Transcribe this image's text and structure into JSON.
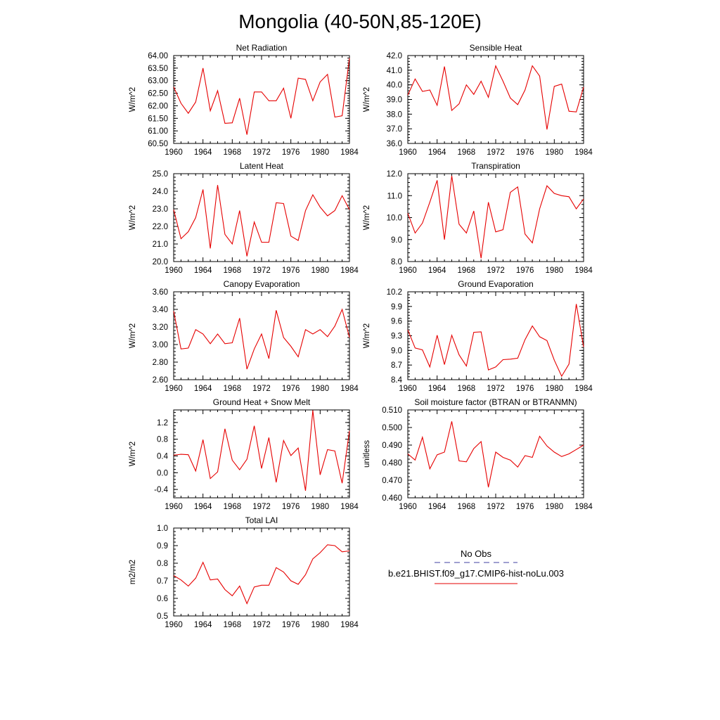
{
  "figure": {
    "title": "Mongolia (40-50N,85-120E)"
  },
  "legend": {
    "obs_label": "No Obs",
    "obs_color": "#3f3fa0",
    "model_label": "b.e21.BHIST.f09_g17.CMIP6-hist-noLu.003",
    "model_color": "#e60000"
  },
  "chart_data": [
    {
      "type": "line",
      "title": "Net Radiation",
      "ylabel": "W/m^2",
      "xlim": [
        1960,
        1984
      ],
      "ylim": [
        60.5,
        64.0
      ],
      "xticks": [
        "1960",
        "1964",
        "1968",
        "1972",
        "1976",
        "1980",
        "1984"
      ],
      "yticks": [
        "60.50",
        "61.00",
        "61.50",
        "62.00",
        "62.50",
        "63.00",
        "63.50",
        "64.00"
      ],
      "x": [
        1960,
        1961,
        1962,
        1963,
        1964,
        1965,
        1966,
        1967,
        1968,
        1969,
        1970,
        1971,
        1972,
        1973,
        1974,
        1975,
        1976,
        1977,
        1978,
        1979,
        1980,
        1981,
        1982,
        1983,
        1984
      ],
      "series": [
        {
          "values": [
            62.75,
            62.1,
            61.7,
            62.15,
            63.5,
            61.8,
            62.6,
            61.3,
            61.32,
            62.3,
            60.85,
            62.55,
            62.55,
            62.2,
            62.2,
            62.7,
            61.5,
            63.1,
            63.05,
            62.2,
            62.95,
            63.25,
            61.55,
            61.6,
            63.9
          ]
        }
      ]
    },
    {
      "type": "line",
      "title": "Sensible Heat",
      "ylabel": "W/m^2",
      "xlim": [
        1960,
        1984
      ],
      "ylim": [
        36.0,
        42.0
      ],
      "xticks": [
        "1960",
        "1964",
        "1968",
        "1972",
        "1976",
        "1980",
        "1984"
      ],
      "yticks": [
        "36.0",
        "37.0",
        "38.0",
        "39.0",
        "40.0",
        "41.0",
        "42.0"
      ],
      "x": [
        1960,
        1961,
        1962,
        1963,
        1964,
        1965,
        1966,
        1967,
        1968,
        1969,
        1970,
        1971,
        1972,
        1973,
        1974,
        1975,
        1976,
        1977,
        1978,
        1979,
        1980,
        1981,
        1982,
        1983,
        1984
      ],
      "series": [
        {
          "values": [
            39.3,
            40.4,
            39.55,
            39.65,
            38.6,
            41.25,
            38.25,
            38.7,
            40.0,
            39.35,
            40.25,
            39.15,
            41.3,
            40.25,
            39.1,
            38.65,
            39.65,
            41.3,
            40.6,
            36.95,
            39.9,
            40.05,
            38.2,
            38.15,
            39.85
          ]
        }
      ]
    },
    {
      "type": "line",
      "title": "Latent Heat",
      "ylabel": "W/m^2",
      "xlim": [
        1960,
        1984
      ],
      "ylim": [
        20.0,
        25.0
      ],
      "xticks": [
        "1960",
        "1964",
        "1968",
        "1972",
        "1976",
        "1980",
        "1984"
      ],
      "yticks": [
        "20.0",
        "21.0",
        "22.0",
        "23.0",
        "24.0",
        "25.0"
      ],
      "x": [
        1960,
        1961,
        1962,
        1963,
        1964,
        1965,
        1966,
        1967,
        1968,
        1969,
        1970,
        1971,
        1972,
        1973,
        1974,
        1975,
        1976,
        1977,
        1978,
        1979,
        1980,
        1981,
        1982,
        1983,
        1984
      ],
      "series": [
        {
          "values": [
            22.95,
            21.3,
            21.7,
            22.5,
            24.1,
            20.75,
            24.35,
            21.55,
            21.0,
            22.9,
            20.3,
            22.25,
            21.1,
            21.1,
            23.35,
            23.3,
            21.45,
            21.2,
            22.9,
            23.8,
            23.1,
            22.6,
            22.9,
            23.75,
            22.95
          ]
        }
      ]
    },
    {
      "type": "line",
      "title": "Transpiration",
      "ylabel": "W/m^2",
      "xlim": [
        1960,
        1984
      ],
      "ylim": [
        8.0,
        12.0
      ],
      "xticks": [
        "1960",
        "1964",
        "1968",
        "1972",
        "1976",
        "1980",
        "1984"
      ],
      "yticks": [
        "8.0",
        "9.0",
        "10.0",
        "11.0",
        "12.0"
      ],
      "x": [
        1960,
        1961,
        1962,
        1963,
        1964,
        1965,
        1966,
        1967,
        1968,
        1969,
        1970,
        1971,
        1972,
        1973,
        1974,
        1975,
        1976,
        1977,
        1978,
        1979,
        1980,
        1981,
        1982,
        1983,
        1984
      ],
      "series": [
        {
          "values": [
            10.2,
            9.3,
            9.75,
            10.7,
            11.7,
            9.0,
            11.9,
            9.7,
            9.3,
            10.3,
            8.15,
            10.7,
            9.35,
            9.45,
            11.15,
            11.4,
            9.25,
            8.85,
            10.4,
            11.45,
            11.1,
            11.0,
            10.95,
            10.4,
            10.85
          ]
        }
      ]
    },
    {
      "type": "line",
      "title": "Canopy Evaporation",
      "ylabel": "W/m^2",
      "xlim": [
        1960,
        1984
      ],
      "ylim": [
        2.6,
        3.6
      ],
      "xticks": [
        "1960",
        "1964",
        "1968",
        "1972",
        "1976",
        "1980",
        "1984"
      ],
      "yticks": [
        "2.60",
        "2.80",
        "3.00",
        "3.20",
        "3.40",
        "3.60"
      ],
      "x": [
        1960,
        1961,
        1962,
        1963,
        1964,
        1965,
        1966,
        1967,
        1968,
        1969,
        1970,
        1971,
        1972,
        1973,
        1974,
        1975,
        1976,
        1977,
        1978,
        1979,
        1980,
        1981,
        1982,
        1983,
        1984
      ],
      "series": [
        {
          "values": [
            3.38,
            2.95,
            2.96,
            3.17,
            3.12,
            3.01,
            3.12,
            3.01,
            3.02,
            3.3,
            2.72,
            2.95,
            3.12,
            2.84,
            3.39,
            3.08,
            2.98,
            2.86,
            3.17,
            3.12,
            3.17,
            3.09,
            3.21,
            3.4,
            3.08
          ]
        }
      ]
    },
    {
      "type": "line",
      "title": "Ground Evaporation",
      "ylabel": "W/m^2",
      "xlim": [
        1960,
        1984
      ],
      "ylim": [
        8.4,
        10.2
      ],
      "xticks": [
        "1960",
        "1964",
        "1968",
        "1972",
        "1976",
        "1980",
        "1984"
      ],
      "yticks": [
        "8.4",
        "8.7",
        "9.0",
        "9.3",
        "9.6",
        "9.9",
        "10.2"
      ],
      "x": [
        1960,
        1961,
        1962,
        1963,
        1964,
        1965,
        1966,
        1967,
        1968,
        1969,
        1970,
        1971,
        1972,
        1973,
        1974,
        1975,
        1976,
        1977,
        1978,
        1979,
        1980,
        1981,
        1982,
        1983,
        1984
      ],
      "series": [
        {
          "values": [
            9.42,
            9.05,
            9.01,
            8.66,
            9.31,
            8.71,
            9.31,
            8.91,
            8.68,
            9.37,
            9.38,
            8.6,
            8.66,
            8.81,
            8.82,
            8.84,
            9.22,
            9.5,
            9.28,
            9.2,
            8.8,
            8.47,
            8.72,
            9.95,
            9.07
          ]
        }
      ]
    },
    {
      "type": "line",
      "title": "Ground Heat + Snow Melt",
      "ylabel": "W/m^2",
      "xlim": [
        1960,
        1984
      ],
      "ylim": [
        -0.6,
        1.5
      ],
      "xticks": [
        "1960",
        "1964",
        "1968",
        "1972",
        "1976",
        "1980",
        "1984"
      ],
      "yticks": [
        "-0.4",
        "0.0",
        "0.4",
        "0.8",
        "1.2"
      ],
      "ytick_values": [
        -0.4,
        0.0,
        0.4,
        0.8,
        1.2
      ],
      "x": [
        1960,
        1961,
        1962,
        1963,
        1964,
        1965,
        1966,
        1967,
        1968,
        1969,
        1970,
        1971,
        1972,
        1973,
        1974,
        1975,
        1976,
        1977,
        1978,
        1979,
        1980,
        1981,
        1982,
        1983,
        1984
      ],
      "series": [
        {
          "values": [
            0.42,
            0.44,
            0.43,
            0.04,
            0.79,
            -0.14,
            0.02,
            1.05,
            0.3,
            0.07,
            0.32,
            1.12,
            0.1,
            0.84,
            -0.23,
            0.77,
            0.41,
            0.59,
            -0.43,
            1.49,
            -0.05,
            0.55,
            0.52,
            -0.25,
            1.0
          ]
        }
      ]
    },
    {
      "type": "line",
      "title": "Soil moisture factor (BTRAN or BTRANMN)",
      "ylabel": "unitless",
      "xlim": [
        1960,
        1984
      ],
      "ylim": [
        0.46,
        0.51
      ],
      "xticks": [
        "1960",
        "1964",
        "1968",
        "1972",
        "1976",
        "1980",
        "1984"
      ],
      "yticks": [
        "0.460",
        "0.470",
        "0.480",
        "0.490",
        "0.500",
        "0.510"
      ],
      "x": [
        1960,
        1961,
        1962,
        1963,
        1964,
        1965,
        1966,
        1967,
        1968,
        1969,
        1970,
        1971,
        1972,
        1973,
        1974,
        1975,
        1976,
        1977,
        1978,
        1979,
        1980,
        1981,
        1982,
        1983,
        1984
      ],
      "series": [
        {
          "values": [
            0.485,
            0.4815,
            0.4945,
            0.4765,
            0.4845,
            0.486,
            0.5035,
            0.481,
            0.4805,
            0.488,
            0.492,
            0.466,
            0.486,
            0.483,
            0.4815,
            0.4775,
            0.484,
            0.483,
            0.495,
            0.4895,
            0.486,
            0.4835,
            0.485,
            0.4875,
            0.49
          ]
        }
      ]
    },
    {
      "type": "line",
      "title": "Total LAI",
      "ylabel": "m2/m2",
      "xlim": [
        1960,
        1984
      ],
      "ylim": [
        0.5,
        1.0
      ],
      "xticks": [
        "1960",
        "1964",
        "1968",
        "1972",
        "1976",
        "1980",
        "1984"
      ],
      "yticks": [
        "0.5",
        "0.6",
        "0.7",
        "0.8",
        "0.9",
        "1.0"
      ],
      "x": [
        1960,
        1961,
        1962,
        1963,
        1964,
        1965,
        1966,
        1967,
        1968,
        1969,
        1970,
        1971,
        1972,
        1973,
        1974,
        1975,
        1976,
        1977,
        1978,
        1979,
        1980,
        1981,
        1982,
        1983,
        1984
      ],
      "series": [
        {
          "values": [
            0.73,
            0.705,
            0.67,
            0.715,
            0.805,
            0.705,
            0.71,
            0.65,
            0.615,
            0.67,
            0.57,
            0.665,
            0.675,
            0.675,
            0.775,
            0.75,
            0.7,
            0.68,
            0.735,
            0.825,
            0.86,
            0.905,
            0.9,
            0.865,
            0.87
          ]
        }
      ]
    }
  ]
}
